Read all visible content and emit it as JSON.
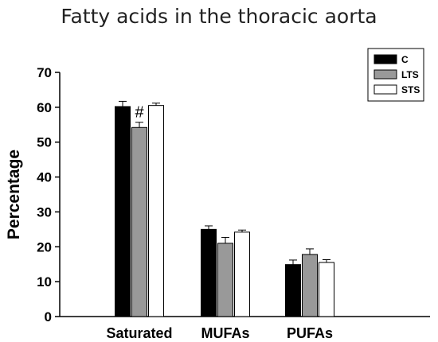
{
  "chart_data": {
    "type": "bar",
    "title": "Fatty acids in the thoracic aorta",
    "xlabel": "",
    "ylabel": "Percentage",
    "ylim": [
      0,
      70
    ],
    "yticks": [
      0,
      10,
      20,
      30,
      40,
      50,
      60,
      70
    ],
    "categories": [
      "Saturated",
      "MUFAs",
      "PUFAs"
    ],
    "series": [
      {
        "name": "C",
        "color": "#000000",
        "values": [
          60.2,
          25.0,
          14.9
        ],
        "errors": [
          1.5,
          1.0,
          1.3
        ]
      },
      {
        "name": "LTS",
        "color": "#999999",
        "values": [
          54.2,
          21.0,
          17.8
        ],
        "errors": [
          1.5,
          1.7,
          1.6
        ]
      },
      {
        "name": "STS",
        "color": "#ffffff",
        "values": [
          60.5,
          24.2,
          15.5
        ],
        "errors": [
          0.7,
          0.6,
          0.8
        ]
      }
    ],
    "annotations": [
      {
        "text": "#",
        "category": "Saturated",
        "series": "LTS"
      }
    ],
    "legend": "top-right",
    "grid": false
  }
}
